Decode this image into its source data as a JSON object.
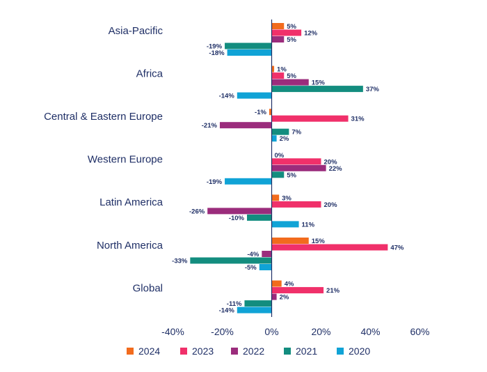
{
  "chart_data": {
    "type": "bar",
    "orientation": "horizontal",
    "title": "",
    "xlabel": "",
    "ylabel": "",
    "xlim": [
      -40,
      60
    ],
    "xticks": [
      -40,
      -20,
      0,
      20,
      40,
      60
    ],
    "tick_labels": [
      "-40%",
      "-20%",
      "0%",
      "20%",
      "40%",
      "60%"
    ],
    "grid": false,
    "legend_position": "bottom",
    "categories": [
      "Asia-Pacific",
      "Africa",
      "Central & Eastern Europe",
      "Western Europe",
      "Latin America",
      "North America",
      "Global"
    ],
    "series": [
      {
        "name": "2024",
        "color": "#f26b1d",
        "values": [
          5,
          1,
          -1,
          0,
          3,
          15,
          4
        ],
        "labels": [
          "5%",
          "1%",
          "-1%",
          "0%",
          "3%",
          "15%",
          "4%"
        ]
      },
      {
        "name": "2023",
        "color": "#f0306a",
        "values": [
          12,
          5,
          31,
          20,
          20,
          47,
          21
        ],
        "labels": [
          "12%",
          "5%",
          "31%",
          "20%",
          "20%",
          "47%",
          "21%"
        ]
      },
      {
        "name": "2022",
        "color": "#9b2c7c",
        "values": [
          5,
          15,
          -21,
          22,
          -26,
          -4,
          2
        ],
        "labels": [
          "5%",
          "15%",
          "-21%",
          "22%",
          "-26%",
          "-4%",
          "2%"
        ]
      },
      {
        "name": "2021",
        "color": "#138d7f",
        "values": [
          -19,
          37,
          7,
          5,
          -10,
          -33,
          -11
        ],
        "labels": [
          "-19%",
          "37%",
          "7%",
          "5%",
          "-10%",
          "-33%",
          "-11%"
        ]
      },
      {
        "name": "2020",
        "color": "#10a3d6",
        "values": [
          -18,
          -14,
          2,
          -19,
          11,
          -5,
          -14
        ],
        "labels": [
          "-18%",
          "-14%",
          "2%",
          "-19%",
          "11%",
          "-5%",
          "-14%"
        ]
      }
    ]
  }
}
